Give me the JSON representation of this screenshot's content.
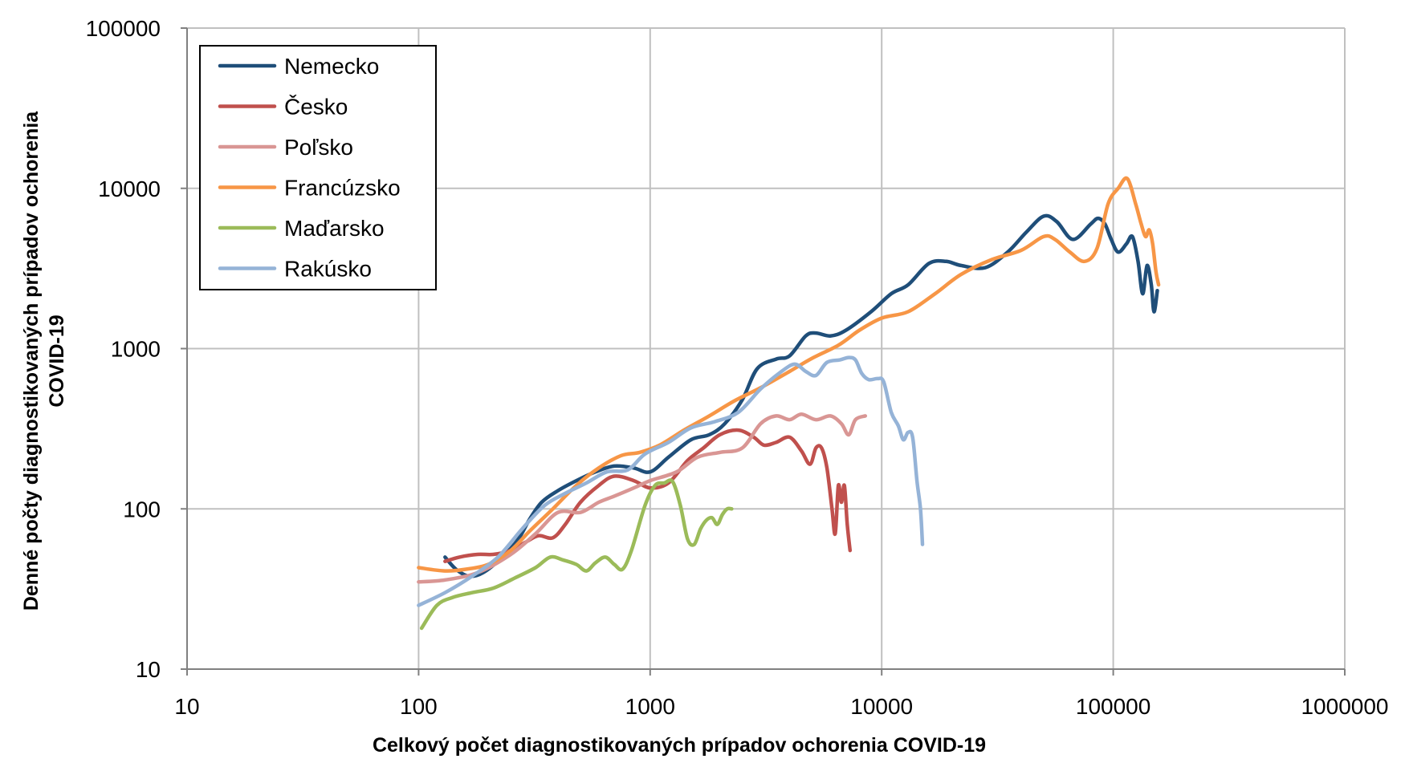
{
  "chart_data": {
    "type": "line",
    "xscale": "log",
    "yscale": "log",
    "xlim": [
      10,
      1000000
    ],
    "ylim": [
      10,
      100000
    ],
    "x_ticks": [
      "10",
      "100",
      "1000",
      "10000",
      "100000",
      "1000000"
    ],
    "y_ticks": [
      "10",
      "100",
      "1000",
      "10000",
      "100000"
    ],
    "xlabel": "Celkový počet diagnostikovaných prípadov ochorenia COVID-19",
    "ylabel_line1": "Denné počty diagnostikovaných prípadov ochorenia",
    "ylabel_line2": "COVID-19",
    "grid": true,
    "legend_position": "top-left",
    "series": [
      {
        "name": "Nemecko",
        "color": "#1f4e79",
        "points": [
          [
            130,
            50
          ],
          [
            145,
            42
          ],
          [
            165,
            38
          ],
          [
            190,
            40
          ],
          [
            230,
            50
          ],
          [
            270,
            65
          ],
          [
            300,
            85
          ],
          [
            340,
            110
          ],
          [
            400,
            130
          ],
          [
            480,
            150
          ],
          [
            580,
            170
          ],
          [
            700,
            185
          ],
          [
            850,
            180
          ],
          [
            1000,
            170
          ],
          [
            1200,
            210
          ],
          [
            1500,
            270
          ],
          [
            1800,
            290
          ],
          [
            2100,
            340
          ],
          [
            2500,
            480
          ],
          [
            2900,
            750
          ],
          [
            3500,
            860
          ],
          [
            4000,
            900
          ],
          [
            4700,
            1200
          ],
          [
            5200,
            1250
          ],
          [
            6000,
            1200
          ],
          [
            7000,
            1300
          ],
          [
            9000,
            1700
          ],
          [
            11000,
            2200
          ],
          [
            13000,
            2500
          ],
          [
            16000,
            3400
          ],
          [
            19000,
            3500
          ],
          [
            22000,
            3300
          ],
          [
            28000,
            3200
          ],
          [
            35000,
            4000
          ],
          [
            42000,
            5300
          ],
          [
            50000,
            6700
          ],
          [
            57000,
            6200
          ],
          [
            67000,
            4800
          ],
          [
            80000,
            6000
          ],
          [
            86000,
            6500
          ],
          [
            92000,
            6000
          ],
          [
            98000,
            4800
          ],
          [
            105000,
            4000
          ],
          [
            114000,
            4500
          ],
          [
            121000,
            5000
          ],
          [
            128000,
            3500
          ],
          [
            134000,
            2200
          ],
          [
            140000,
            3300
          ],
          [
            146000,
            2500
          ],
          [
            150000,
            1700
          ],
          [
            155000,
            2300
          ]
        ]
      },
      {
        "name": "Česko",
        "color": "#c0504d",
        "points": [
          [
            130,
            47
          ],
          [
            150,
            50
          ],
          [
            180,
            52
          ],
          [
            210,
            52
          ],
          [
            250,
            55
          ],
          [
            290,
            62
          ],
          [
            330,
            68
          ],
          [
            380,
            66
          ],
          [
            430,
            80
          ],
          [
            500,
            110
          ],
          [
            600,
            140
          ],
          [
            700,
            160
          ],
          [
            850,
            150
          ],
          [
            1000,
            135
          ],
          [
            1200,
            145
          ],
          [
            1450,
            200
          ],
          [
            1700,
            240
          ],
          [
            2000,
            290
          ],
          [
            2400,
            310
          ],
          [
            2800,
            280
          ],
          [
            3100,
            250
          ],
          [
            3500,
            260
          ],
          [
            4000,
            280
          ],
          [
            4500,
            230
          ],
          [
            4900,
            190
          ],
          [
            5200,
            240
          ],
          [
            5500,
            240
          ],
          [
            5800,
            180
          ],
          [
            6100,
            100
          ],
          [
            6300,
            70
          ],
          [
            6500,
            140
          ],
          [
            6700,
            110
          ],
          [
            6900,
            140
          ],
          [
            7100,
            80
          ],
          [
            7300,
            55
          ]
        ]
      },
      {
        "name": "Poľsko",
        "color": "#d99694",
        "points": [
          [
            100,
            35
          ],
          [
            130,
            36
          ],
          [
            180,
            40
          ],
          [
            250,
            52
          ],
          [
            320,
            70
          ],
          [
            400,
            95
          ],
          [
            500,
            95
          ],
          [
            600,
            110
          ],
          [
            700,
            120
          ],
          [
            850,
            135
          ],
          [
            1000,
            150
          ],
          [
            1300,
            170
          ],
          [
            1600,
            210
          ],
          [
            2000,
            225
          ],
          [
            2500,
            240
          ],
          [
            3000,
            340
          ],
          [
            3500,
            380
          ],
          [
            4000,
            360
          ],
          [
            4500,
            390
          ],
          [
            5200,
            360
          ],
          [
            6000,
            380
          ],
          [
            6700,
            340
          ],
          [
            7200,
            290
          ],
          [
            7700,
            360
          ],
          [
            8500,
            380
          ]
        ]
      },
      {
        "name": "Francúzsko",
        "color": "#f79646",
        "points": [
          [
            100,
            43
          ],
          [
            130,
            41
          ],
          [
            160,
            42
          ],
          [
            200,
            45
          ],
          [
            250,
            55
          ],
          [
            300,
            72
          ],
          [
            380,
            100
          ],
          [
            480,
            140
          ],
          [
            600,
            180
          ],
          [
            750,
            215
          ],
          [
            900,
            225
          ],
          [
            1100,
            250
          ],
          [
            1400,
            310
          ],
          [
            1800,
            380
          ],
          [
            2300,
            470
          ],
          [
            3000,
            570
          ],
          [
            4000,
            720
          ],
          [
            5000,
            870
          ],
          [
            6500,
            1050
          ],
          [
            8000,
            1300
          ],
          [
            10000,
            1550
          ],
          [
            13000,
            1700
          ],
          [
            17000,
            2200
          ],
          [
            22000,
            2900
          ],
          [
            30000,
            3600
          ],
          [
            40000,
            4100
          ],
          [
            50000,
            5000
          ],
          [
            56000,
            4800
          ],
          [
            65000,
            4000
          ],
          [
            75000,
            3500
          ],
          [
            85000,
            4200
          ],
          [
            95000,
            8000
          ],
          [
            105000,
            10000
          ],
          [
            115000,
            11500
          ],
          [
            125000,
            8000
          ],
          [
            132000,
            6000
          ],
          [
            138000,
            5000
          ],
          [
            143000,
            5500
          ],
          [
            148000,
            4500
          ],
          [
            153000,
            3000
          ],
          [
            157000,
            2500
          ]
        ]
      },
      {
        "name": "Maďarsko",
        "color": "#9bbb59",
        "points": [
          [
            103,
            18
          ],
          [
            120,
            25
          ],
          [
            140,
            28
          ],
          [
            170,
            30
          ],
          [
            210,
            32
          ],
          [
            260,
            37
          ],
          [
            320,
            43
          ],
          [
            370,
            50
          ],
          [
            420,
            48
          ],
          [
            480,
            45
          ],
          [
            530,
            41
          ],
          [
            580,
            46
          ],
          [
            640,
            50
          ],
          [
            700,
            45
          ],
          [
            760,
            42
          ],
          [
            830,
            55
          ],
          [
            950,
            105
          ],
          [
            1050,
            140
          ],
          [
            1150,
            145
          ],
          [
            1250,
            148
          ],
          [
            1350,
            105
          ],
          [
            1450,
            65
          ],
          [
            1550,
            60
          ],
          [
            1650,
            75
          ],
          [
            1750,
            85
          ],
          [
            1850,
            88
          ],
          [
            1950,
            80
          ],
          [
            2050,
            92
          ],
          [
            2150,
            100
          ],
          [
            2250,
            100
          ]
        ]
      },
      {
        "name": "Rakúsko",
        "color": "#95b3d7",
        "points": [
          [
            100,
            25
          ],
          [
            130,
            30
          ],
          [
            170,
            38
          ],
          [
            220,
            50
          ],
          [
            280,
            75
          ],
          [
            350,
            105
          ],
          [
            430,
            125
          ],
          [
            530,
            145
          ],
          [
            650,
            170
          ],
          [
            800,
            175
          ],
          [
            950,
            220
          ],
          [
            1200,
            260
          ],
          [
            1500,
            320
          ],
          [
            1900,
            350
          ],
          [
            2400,
            400
          ],
          [
            3000,
            560
          ],
          [
            3600,
            700
          ],
          [
            4200,
            800
          ],
          [
            4700,
            720
          ],
          [
            5200,
            680
          ],
          [
            5800,
            820
          ],
          [
            6600,
            850
          ],
          [
            7200,
            880
          ],
          [
            7700,
            850
          ],
          [
            8200,
            700
          ],
          [
            8800,
            640
          ],
          [
            9600,
            650
          ],
          [
            10200,
            620
          ],
          [
            11000,
            400
          ],
          [
            11800,
            330
          ],
          [
            12400,
            270
          ],
          [
            13000,
            300
          ],
          [
            13600,
            280
          ],
          [
            14200,
            150
          ],
          [
            14700,
            100
          ],
          [
            15000,
            60
          ]
        ]
      }
    ]
  }
}
